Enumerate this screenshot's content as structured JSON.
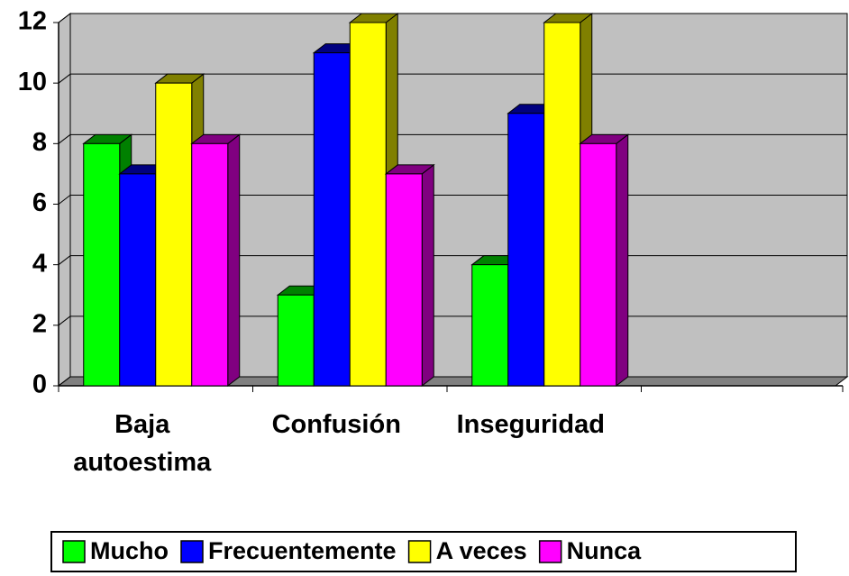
{
  "chart_data": {
    "type": "bar3d",
    "categories": [
      "Baja autoestima",
      "Confusión",
      "Inseguridad",
      null
    ],
    "series": [
      {
        "name": "Mucho",
        "color": "#00ff00",
        "side_color": "#008000",
        "values": [
          8,
          3,
          4,
          null
        ]
      },
      {
        "name": "Frecuentemente",
        "color": "#0000ff",
        "side_color": "#000080",
        "values": [
          7,
          11,
          9,
          null
        ]
      },
      {
        "name": "A veces",
        "color": "#ffff00",
        "side_color": "#808000",
        "values": [
          10,
          12,
          12,
          null
        ]
      },
      {
        "name": "Nunca",
        "color": "#ff00ff",
        "side_color": "#800080",
        "values": [
          8,
          7,
          8,
          null
        ]
      }
    ],
    "ylim": [
      0,
      12
    ],
    "yticks": [
      0,
      2,
      4,
      6,
      8,
      10,
      12
    ],
    "grid": true,
    "legend": "bottom"
  }
}
